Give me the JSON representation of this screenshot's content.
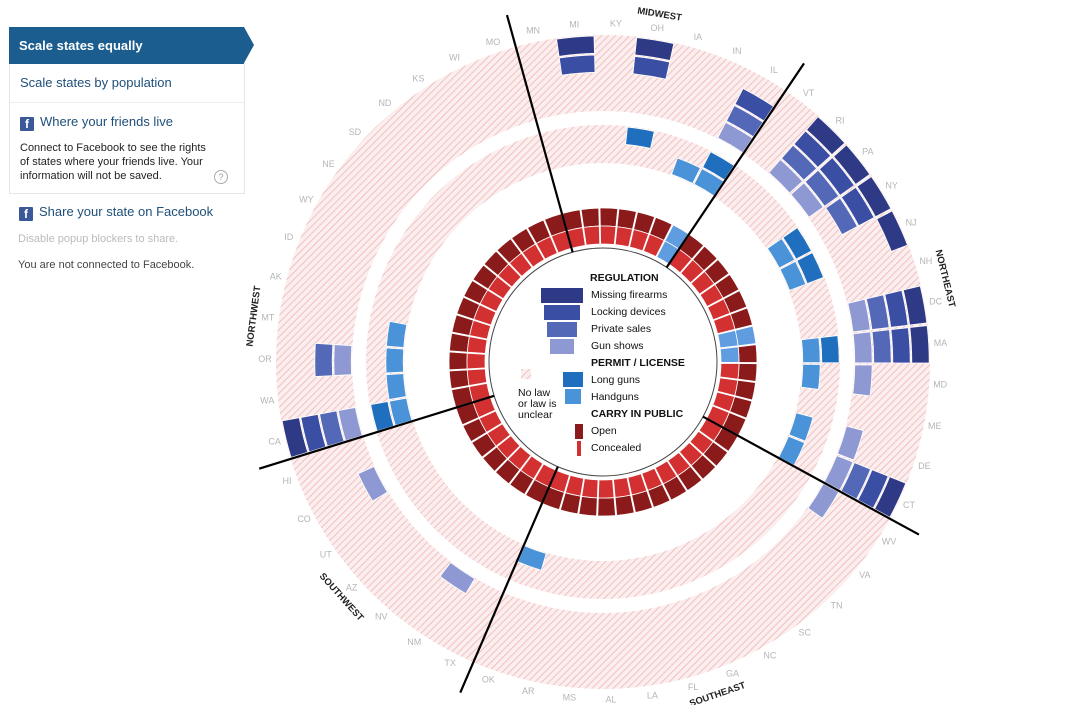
{
  "sidebar": {
    "scale_equal": "Scale states equally",
    "scale_population": "Scale states by population",
    "friends_title": "Where your friends live",
    "friends_text": "Connect to Facebook to see the rights of states where your friends live. Your information will not be saved.",
    "help": "?",
    "share_title": "Share your state on Facebook",
    "popup_note": "Disable popup blockers to share.",
    "connect_status": "You are not connected to Facebook."
  },
  "colors": {
    "sidebar_active": "#1c5d8f",
    "link": "#1f4f7a",
    "regulation": [
      "#2e3a86",
      "#3a4ea3",
      "#5468b8",
      "#8e99d3"
    ],
    "permit": [
      "#1f6fbe",
      "#4a93d8"
    ],
    "carry_open": "#8b1a1a",
    "carry_concealed": "#d33131",
    "no_law_hatch": "#f3b3b3"
  },
  "chart_data": {
    "type": "radial",
    "regions": [
      {
        "name": "MIDWEST",
        "states": [
          "MN",
          "MI",
          "KY",
          "OH",
          "IA",
          "IN",
          "IL"
        ]
      },
      {
        "name": "NORTHEAST",
        "states": [
          "VT",
          "RI",
          "PA",
          "NY",
          "NJ",
          "NH",
          "DC",
          "MA",
          "MD",
          "ME",
          "DE",
          "CT"
        ]
      },
      {
        "name": "SOUTHEAST",
        "states": [
          "WV",
          "VA",
          "TN",
          "SC",
          "NC",
          "GA",
          "FL",
          "LA",
          "AL",
          "MS",
          "AR",
          "OK"
        ]
      },
      {
        "name": "SOUTHWEST",
        "states": [
          "TX",
          "NM",
          "NV",
          "AZ",
          "UT",
          "CO",
          "HI"
        ]
      },
      {
        "name": "NORTHWEST",
        "states": [
          "CA",
          "WA",
          "OR",
          "MT",
          "AK",
          "ID",
          "WY"
        ]
      },
      {
        "name": "",
        "states": [
          "NE",
          "SD",
          "ND",
          "KS",
          "WI",
          "MO"
        ]
      }
    ],
    "legend": {
      "regulation_title": "REGULATION",
      "regulation_items": [
        "Missing firearms",
        "Locking devices",
        "Private sales",
        "Gun shows"
      ],
      "permit_title": "PERMIT / LICENSE",
      "permit_items": [
        "Long guns",
        "Handguns"
      ],
      "carry_title": "CARRY IN PUBLIC",
      "carry_items": [
        "Open",
        "Concealed"
      ],
      "no_law": "No law\nor law is\nunclear"
    },
    "regulation": {
      "MI": [
        1,
        1,
        0,
        0
      ],
      "OH": [
        1,
        1,
        0,
        0
      ],
      "IL": [
        0,
        1,
        1,
        1
      ],
      "VT": [
        0,
        0,
        0,
        0
      ],
      "RI": [
        1,
        1,
        1,
        1
      ],
      "PA": [
        1,
        1,
        1,
        1
      ],
      "NY": [
        1,
        1,
        1,
        0
      ],
      "NJ": [
        1,
        0,
        0,
        0
      ],
      "DC": [
        1,
        1,
        1,
        1
      ],
      "MA": [
        1,
        1,
        1,
        1
      ],
      "MD": [
        0,
        0,
        0,
        1
      ],
      "DE": [
        0,
        0,
        0,
        1
      ],
      "CT": [
        1,
        1,
        1,
        1
      ],
      "OR": [
        0,
        0,
        1,
        1
      ],
      "CA": [
        1,
        1,
        1,
        1
      ],
      "WV": [
        0,
        0,
        0,
        1
      ],
      "CO": [
        0,
        0,
        0,
        1
      ],
      "NM": [
        0,
        0,
        0,
        1
      ]
    },
    "permit": {
      "OH": [
        1,
        0
      ],
      "IN": [
        0,
        1
      ],
      "IL": [
        1,
        1
      ],
      "NY": [
        1,
        1
      ],
      "NJ": [
        1,
        1
      ],
      "MA": [
        1,
        1
      ],
      "MD": [
        0,
        1
      ],
      "DE": [
        0,
        1
      ],
      "CT": [
        0,
        1
      ],
      "OK": [
        0,
        1
      ],
      "CA": [
        1,
        1
      ],
      "WA": [
        0,
        1
      ],
      "OR": [
        0,
        1
      ],
      "MT": [
        0,
        1
      ]
    },
    "carry_open": {
      "AL": 1,
      "MS": 1,
      "AR": 1,
      "OK": 1,
      "KY": 1,
      "OH": 1,
      "MI": 1,
      "VT": 1,
      "RI": 1,
      "PA": 1,
      "NH": 1,
      "DE": 1,
      "WV": 1,
      "VA": 1,
      "TN": 1,
      "SC": 1,
      "NC": 1,
      "GA": 1,
      "LA": 1,
      "TX": 1,
      "NM": 1,
      "NV": 1,
      "AZ": 1,
      "UT": 1,
      "CO": 1,
      "HI": 1,
      "CA": 1,
      "WA": 1,
      "OR": 1,
      "MT": 1,
      "AK": 1,
      "ID": 1,
      "WY": 1,
      "NE": 1,
      "SD": 1,
      "ND": 1,
      "KS": 1,
      "WI": 1,
      "MO": 1,
      "MN": 1,
      "IA": 1,
      "IN": 1,
      "IL": 0,
      "NY": 1,
      "NJ": 1,
      "DC": 0,
      "MA": 1,
      "MD": 1,
      "ME": 1,
      "CT": 1,
      "FL": 1
    },
    "carry_concealed": {
      "IL": 1,
      "DC": 1,
      "MA": 1
    }
  }
}
